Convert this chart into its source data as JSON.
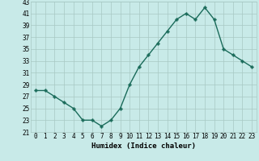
{
  "x": [
    0,
    1,
    2,
    3,
    4,
    5,
    6,
    7,
    8,
    9,
    10,
    11,
    12,
    13,
    14,
    15,
    16,
    17,
    18,
    19,
    20,
    21,
    22,
    23
  ],
  "y": [
    28,
    28,
    27,
    26,
    25,
    23,
    23,
    22,
    23,
    25,
    29,
    32,
    34,
    36,
    38,
    40,
    41,
    40,
    42,
    40,
    35,
    34,
    33,
    32
  ],
  "line_color": "#1a6b5a",
  "marker": "P",
  "marker_size": 2.5,
  "line_width": 1.0,
  "bg_color": "#c8eae8",
  "grid_color": "#a8c8c4",
  "xlabel": "Humidex (Indice chaleur)",
  "xlabel_fontsize": 6.5,
  "tick_fontsize": 5.5,
  "ylim": [
    21,
    43
  ],
  "yticks": [
    21,
    23,
    25,
    27,
    29,
    31,
    33,
    35,
    37,
    39,
    41,
    43
  ],
  "xlim": [
    -0.5,
    23.5
  ]
}
